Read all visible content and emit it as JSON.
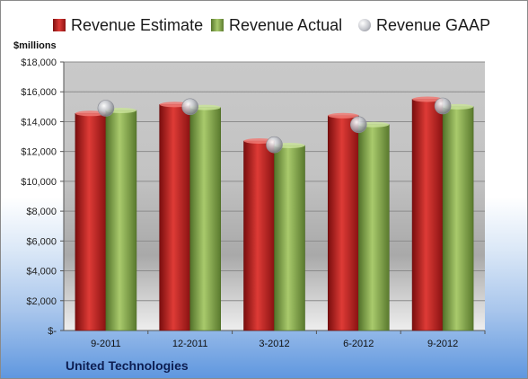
{
  "chart_data": {
    "type": "bar",
    "categories": [
      "9-2011",
      "12-2011",
      "3-2012",
      "6-2012",
      "9-2012"
    ],
    "series": [
      {
        "name": "Revenue Estimate",
        "values": [
          14550,
          15150,
          12700,
          14400,
          15500
        ],
        "color": "#c0282a"
      },
      {
        "name": "Revenue Actual",
        "values": [
          14750,
          14950,
          12400,
          13800,
          15000
        ],
        "color": "#8db255"
      },
      {
        "name": "Revenue GAAP",
        "values": [
          14900,
          15000,
          12450,
          13800,
          15050
        ],
        "color": "#b9bcc4"
      }
    ],
    "ylabel": "$millions",
    "ylim": [
      0,
      18000
    ],
    "yticks": [
      0,
      2000,
      4000,
      6000,
      8000,
      10000,
      12000,
      14000,
      16000,
      18000
    ],
    "ytick_labels": [
      "$-",
      "$2,000",
      "$4,000",
      "$6,000",
      "$8,000",
      "$10,000",
      "$12,000",
      "$14,000",
      "$16,000",
      "$18,000"
    ],
    "legend_position": "top",
    "grid": true,
    "gaap_style": "sphere-markers"
  },
  "company": "United Technologies"
}
